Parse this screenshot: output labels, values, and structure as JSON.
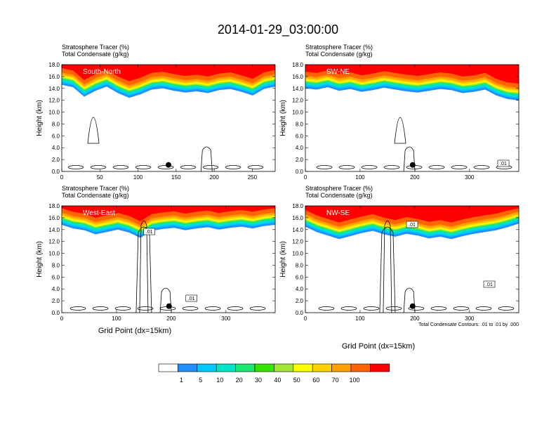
{
  "figure": {
    "title": "2014-01-29_03:00:00",
    "contour_note": "Total Condensate Contours: .01 to .01 by .000",
    "colorbar": {
      "levels": [
        "1",
        "5",
        "10",
        "20",
        "30",
        "40",
        "50",
        "60",
        "70",
        "100"
      ],
      "colors": [
        "#ffffff",
        "#1e90ff",
        "#00c8ff",
        "#00e5c8",
        "#19e86e",
        "#32e600",
        "#a0e632",
        "#ffff00",
        "#ffd200",
        "#ffa000",
        "#ff6400",
        "#ff0000"
      ]
    }
  },
  "chart_data": [
    {
      "type": "contour",
      "id": "south-north",
      "top_left": "Stratosphere Tracer   (%)",
      "top_left2": "Total Condensate   (g/kg)",
      "label": "South-North",
      "ylabel": "Height (km)",
      "xlabel": "",
      "xlim": [
        0,
        280
      ],
      "ylim": [
        0,
        18
      ],
      "x_ticks": [
        "0",
        "50",
        "100",
        "150",
        "200",
        "250"
      ],
      "y_ticks": [
        "0.0",
        "2.0",
        "4.0",
        "6.0",
        "8.0",
        "10.0",
        "12.0",
        "14.0",
        "16.0",
        "18.0"
      ],
      "contour_labels": [],
      "marker": {
        "x": 140,
        "y": 1.1
      },
      "tracer_floor_km": [
        14.6,
        14.2,
        12.6,
        13.6,
        14.3,
        13.2,
        12.4,
        13.0,
        13.8,
        14.0,
        13.6,
        13.3,
        13.5,
        13.2,
        13.7,
        13.9,
        13.4,
        12.8,
        13.9,
        14.3
      ]
    },
    {
      "type": "contour",
      "id": "sw-ne",
      "top_left": "Stratosphere Tracer   (%)",
      "top_left2": "Total Condensate   (g/kg)",
      "label": "SW-NE",
      "ylabel": "Height (km)",
      "xlabel": "",
      "xlim": [
        0,
        390
      ],
      "ylim": [
        0,
        18
      ],
      "x_ticks": [
        "0",
        "100",
        "200",
        "300"
      ],
      "y_ticks": [
        "0.0",
        "2.0",
        "4.0",
        "6.0",
        "8.0",
        "10.0",
        "12.0",
        "14.0",
        "16.0",
        "18.0"
      ],
      "contour_labels": [
        ".01"
      ],
      "marker": {
        "x": 196,
        "y": 1.1
      },
      "tracer_floor_km": [
        14.0,
        13.8,
        14.2,
        13.6,
        13.9,
        13.4,
        13.7,
        14.1,
        13.8,
        13.5,
        13.3,
        13.6,
        13.9,
        13.7,
        13.2,
        13.4,
        13.8,
        12.8,
        12.2,
        12.0
      ]
    },
    {
      "type": "contour",
      "id": "west-east",
      "top_left": "Stratosphere Tracer   (%)",
      "top_left2": "Total Condensate   (g/kg)",
      "label": "West-East",
      "ylabel": "Height (km)",
      "xlabel": "Grid Point (dx=15km)",
      "xlim": [
        0,
        390
      ],
      "ylim": [
        0,
        18
      ],
      "x_ticks": [
        "0",
        "100",
        "200",
        "300"
      ],
      "y_ticks": [
        "0.0",
        "2.0",
        "4.0",
        "6.0",
        "8.0",
        "10.0",
        "12.0",
        "14.0",
        "16.0",
        "18.0"
      ],
      "contour_labels": [
        ".01",
        ".01"
      ],
      "marker": {
        "x": 196,
        "y": 1.1
      },
      "tracer_floor_km": [
        14.8,
        14.2,
        13.9,
        13.2,
        13.6,
        14.0,
        13.5,
        12.6,
        13.8,
        14.1,
        14.3,
        13.9,
        14.2,
        14.4,
        14.0,
        14.3,
        14.5,
        14.2,
        14.6,
        14.8
      ]
    },
    {
      "type": "contour",
      "id": "nw-se",
      "top_left": "Stratosphere Tracer   (%)",
      "top_left2": "Total Condensate   (g/kg)",
      "label": "NW-SE",
      "ylabel": "Height (km)",
      "xlabel": "Grid Point (dx=15km)",
      "xlim": [
        0,
        390
      ],
      "ylim": [
        0,
        18
      ],
      "x_ticks": [
        "0",
        "100",
        "200",
        "300"
      ],
      "y_ticks": [
        "0.0",
        "2.0",
        "4.0",
        "6.0",
        "8.0",
        "10.0",
        "12.0",
        "14.0",
        "16.0",
        "18.0"
      ],
      "contour_labels": [
        ".01",
        ".01"
      ],
      "marker": {
        "x": 196,
        "y": 1.1
      },
      "tracer_floor_km": [
        14.5,
        13.6,
        13.0,
        12.4,
        12.9,
        13.4,
        13.8,
        13.2,
        12.8,
        13.3,
        13.0,
        12.5,
        12.8,
        12.4,
        12.9,
        13.3,
        13.6,
        13.9,
        14.4,
        15.0
      ]
    }
  ]
}
